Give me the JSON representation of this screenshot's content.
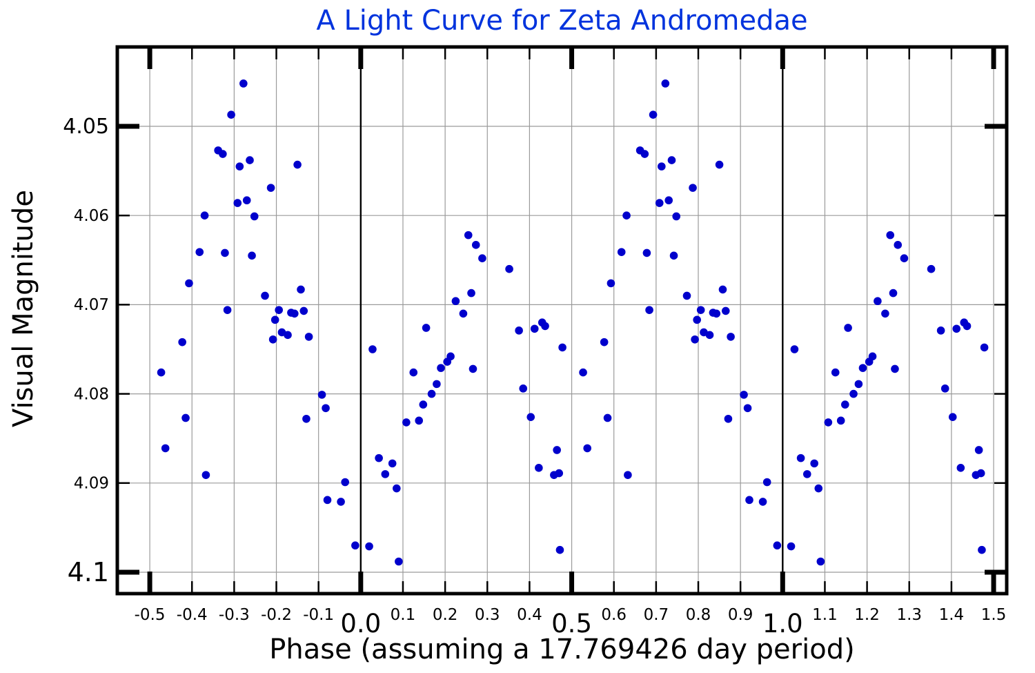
{
  "chart_data": {
    "type": "scatter",
    "title": "A Light Curve for Zeta Andromedae",
    "title_color": "#0033dd",
    "xlabel": "Phase (assuming a 17.769426 day period)",
    "ylabel": "Visual Magnitude",
    "period_days": "17.769426",
    "marker_color": "#0000cc",
    "grid_color": "#9a9a9a",
    "frame_color": "#000000",
    "background_color": "#ffffff",
    "xlim": [
      -0.577,
      1.531
    ],
    "ylim": [
      4.0411,
      4.1024
    ],
    "y_axis_inverted_note": "magnitude increases downward",
    "phase_lines": [
      0,
      1
    ],
    "replicate_offsets": [
      -1,
      0,
      1
    ],
    "visible_phase_range": [
      -0.482,
      1.515
    ],
    "x_ticks": [
      {
        "v": -0.5,
        "label": "-0.5",
        "major": true,
        "size": "sm"
      },
      {
        "v": -0.4,
        "label": "-0.4",
        "major": false,
        "size": "sm"
      },
      {
        "v": -0.3,
        "label": "-0.3",
        "major": false,
        "size": "sm"
      },
      {
        "v": -0.2,
        "label": "-0.2",
        "major": false,
        "size": "sm"
      },
      {
        "v": -0.1,
        "label": "-0.1",
        "major": false,
        "size": "sm"
      },
      {
        "v": 0,
        "label": "0.0",
        "major": true,
        "size": "lg"
      },
      {
        "v": 0.1,
        "label": "0.1",
        "major": false,
        "size": "sm"
      },
      {
        "v": 0.2,
        "label": "0.2",
        "major": false,
        "size": "sm"
      },
      {
        "v": 0.3,
        "label": "0.3",
        "major": false,
        "size": "sm"
      },
      {
        "v": 0.4,
        "label": "0.4",
        "major": false,
        "size": "sm"
      },
      {
        "v": 0.5,
        "label": "0.5",
        "major": true,
        "size": "lg"
      },
      {
        "v": 0.6,
        "label": "0.6",
        "major": false,
        "size": "sm"
      },
      {
        "v": 0.7,
        "label": "0.7",
        "major": false,
        "size": "sm"
      },
      {
        "v": 0.8,
        "label": "0.8",
        "major": false,
        "size": "sm"
      },
      {
        "v": 0.9,
        "label": "0.9",
        "major": false,
        "size": "sm"
      },
      {
        "v": 1,
        "label": "1.0",
        "major": true,
        "size": "lg"
      },
      {
        "v": 1.1,
        "label": "1.1",
        "major": false,
        "size": "sm"
      },
      {
        "v": 1.2,
        "label": "1.2",
        "major": false,
        "size": "sm"
      },
      {
        "v": 1.3,
        "label": "1.3",
        "major": false,
        "size": "sm"
      },
      {
        "v": 1.4,
        "label": "1.4",
        "major": false,
        "size": "sm"
      },
      {
        "v": 1.5,
        "label": "1.5",
        "major": true,
        "size": "sm"
      }
    ],
    "y_ticks": [
      {
        "v": 4.05,
        "label": "4.05",
        "major": true,
        "size": "md"
      },
      {
        "v": 4.06,
        "label": "4.06",
        "major": false,
        "size": "sm"
      },
      {
        "v": 4.07,
        "label": "4.07",
        "major": false,
        "size": "sm"
      },
      {
        "v": 4.08,
        "label": "4.08",
        "major": false,
        "size": "sm"
      },
      {
        "v": 4.09,
        "label": "4.09",
        "major": false,
        "size": "sm"
      },
      {
        "v": 4.1,
        "label": "4.1",
        "major": true,
        "size": "lg"
      }
    ],
    "points": [
      [
        0.02,
        4.0971
      ],
      [
        0.028,
        4.075
      ],
      [
        0.043,
        4.0872
      ],
      [
        0.058,
        4.089
      ],
      [
        0.075,
        4.0878
      ],
      [
        0.085,
        4.0906
      ],
      [
        0.09,
        4.0988
      ],
      [
        0.108,
        4.0832
      ],
      [
        0.125,
        4.0776
      ],
      [
        0.138,
        4.083
      ],
      [
        0.148,
        4.0812
      ],
      [
        0.155,
        4.0726
      ],
      [
        0.168,
        4.08
      ],
      [
        0.18,
        4.0789
      ],
      [
        0.19,
        4.0771
      ],
      [
        0.205,
        4.0764
      ],
      [
        0.213,
        4.0758
      ],
      [
        0.225,
        4.0696
      ],
      [
        0.243,
        4.071
      ],
      [
        0.255,
        4.0622
      ],
      [
        0.262,
        4.0687
      ],
      [
        0.266,
        4.0772
      ],
      [
        0.273,
        4.0633
      ],
      [
        0.288,
        4.0648
      ],
      [
        0.352,
        4.066
      ],
      [
        0.375,
        4.0729
      ],
      [
        0.385,
        4.0794
      ],
      [
        0.403,
        4.0826
      ],
      [
        0.412,
        4.0727
      ],
      [
        0.422,
        4.0883
      ],
      [
        0.43,
        4.072
      ],
      [
        0.437,
        4.0724
      ],
      [
        0.458,
        4.0891
      ],
      [
        0.465,
        4.0863
      ],
      [
        0.47,
        4.0889
      ],
      [
        0.472,
        4.0975
      ],
      [
        0.478,
        4.0748
      ],
      [
        0.527,
        4.0776
      ],
      [
        0.537,
        4.0861
      ],
      [
        0.577,
        4.0742
      ],
      [
        0.585,
        4.0827
      ],
      [
        0.593,
        4.0676
      ],
      [
        0.618,
        4.0641
      ],
      [
        0.63,
        4.06
      ],
      [
        0.633,
        4.0891
      ],
      [
        0.662,
        4.0527
      ],
      [
        0.673,
        4.0531
      ],
      [
        0.678,
        4.0642
      ],
      [
        0.684,
        4.0706
      ],
      [
        0.693,
        4.0487
      ],
      [
        0.708,
        4.0586
      ],
      [
        0.713,
        4.0545
      ],
      [
        0.722,
        4.0452
      ],
      [
        0.73,
        4.0583
      ],
      [
        0.737,
        4.0538
      ],
      [
        0.742,
        4.0645
      ],
      [
        0.748,
        4.0601
      ],
      [
        0.773,
        4.069
      ],
      [
        0.787,
        4.0569
      ],
      [
        0.792,
        4.0739
      ],
      [
        0.797,
        4.0717
      ],
      [
        0.806,
        4.0706
      ],
      [
        0.813,
        4.0731
      ],
      [
        0.827,
        4.0734
      ],
      [
        0.835,
        4.0709
      ],
      [
        0.843,
        4.071
      ],
      [
        0.85,
        4.0543
      ],
      [
        0.858,
        4.0683
      ],
      [
        0.865,
        4.0707
      ],
      [
        0.871,
        4.0828
      ],
      [
        0.877,
        4.0736
      ],
      [
        0.908,
        4.0801
      ],
      [
        0.917,
        4.0816
      ],
      [
        0.921,
        4.0919
      ],
      [
        0.953,
        4.0921
      ],
      [
        0.963,
        4.0899
      ],
      [
        0.987,
        4.097
      ]
    ]
  }
}
